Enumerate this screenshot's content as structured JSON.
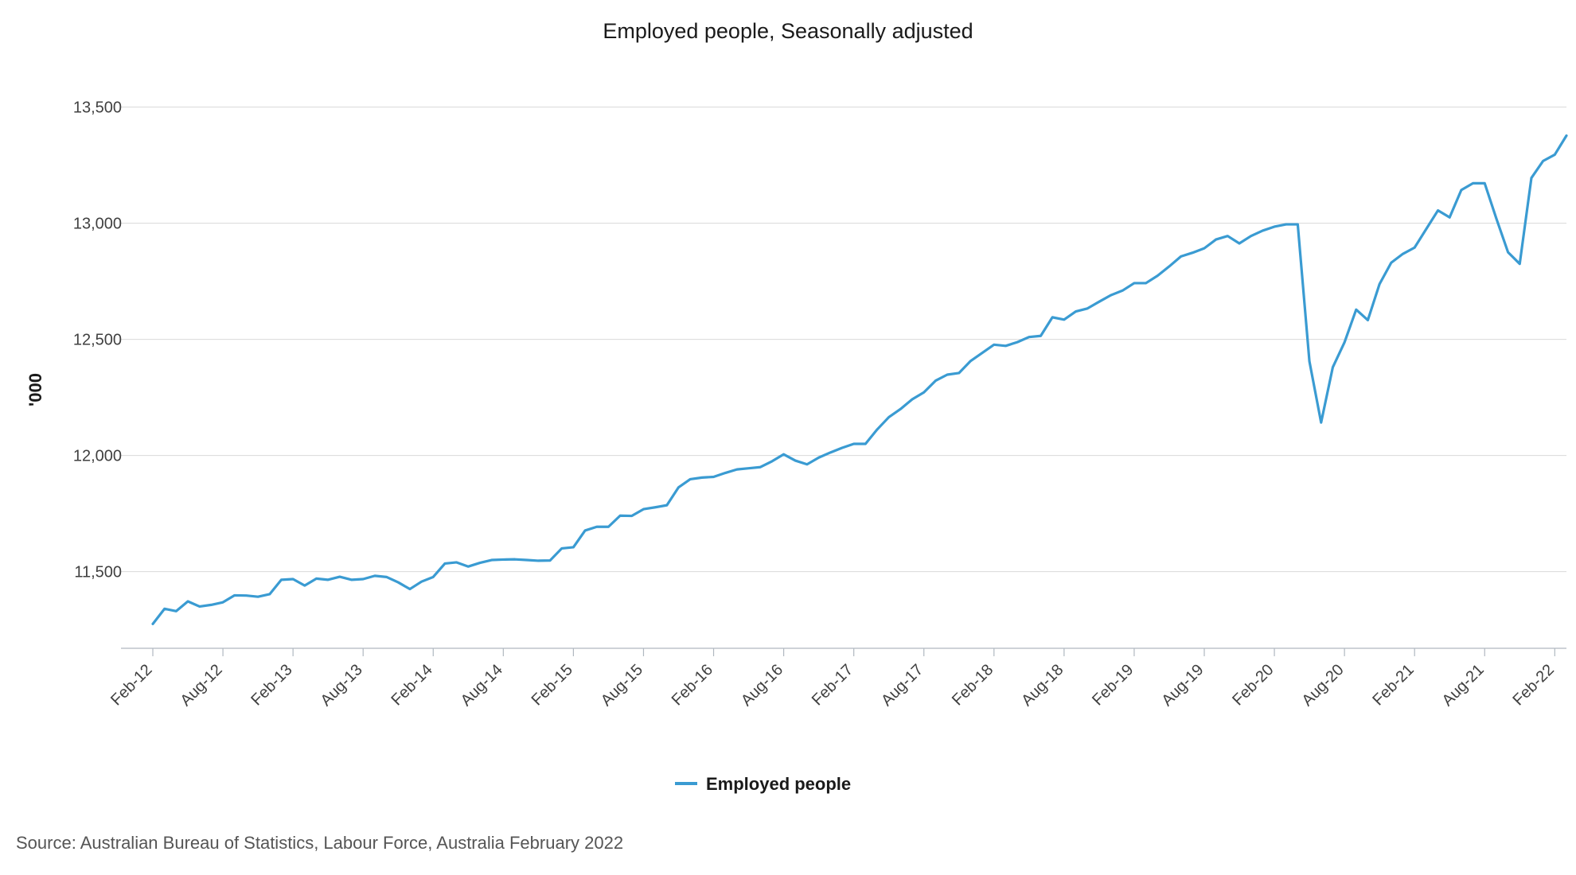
{
  "chart_data": {
    "type": "line",
    "title": "Employed people, Seasonally adjusted",
    "ylabel": "'000",
    "xlabel": "",
    "ylim": [
      11170,
      13550
    ],
    "yticks": [
      11500,
      12000,
      12500,
      13000,
      13500
    ],
    "ytick_labels": [
      "11,500",
      "12,000",
      "12,500",
      "13,000",
      "13,500"
    ],
    "x_tick_labels": [
      "Feb-12",
      "Aug-12",
      "Feb-13",
      "Aug-13",
      "Feb-14",
      "Aug-14",
      "Feb-15",
      "Aug-15",
      "Feb-16",
      "Aug-16",
      "Feb-17",
      "Aug-17",
      "Feb-18",
      "Aug-18",
      "Feb-19",
      "Aug-19",
      "Feb-20",
      "Aug-20",
      "Feb-21",
      "Aug-21",
      "Feb-22"
    ],
    "grid": true,
    "legend_position": "bottom-center",
    "series": [
      {
        "name": "Employed people",
        "color": "#3a9bd2",
        "start": "Feb-12",
        "values": [
          11275,
          11340,
          11330,
          11372,
          11350,
          11357,
          11368,
          11398,
          11397,
          11392,
          11403,
          11465,
          11468,
          11440,
          11470,
          11465,
          11478,
          11465,
          11468,
          11482,
          11477,
          11454,
          11425,
          11457,
          11477,
          11535,
          11540,
          11522,
          11538,
          11550,
          11552,
          11553,
          11550,
          11547,
          11548,
          11600,
          11605,
          11677,
          11693,
          11693,
          11741,
          11740,
          11769,
          11777,
          11786,
          11863,
          11898,
          11905,
          11908,
          11925,
          11940,
          11945,
          11950,
          11975,
          12005,
          11978,
          11962,
          11991,
          12013,
          12033,
          12050,
          12050,
          12112,
          12165,
          12200,
          12242,
          12272,
          12322,
          12348,
          12355,
          12407,
          12442,
          12477,
          12472,
          12488,
          12510,
          12515,
          12595,
          12585,
          12620,
          12633,
          12662,
          12690,
          12710,
          12742,
          12742,
          12774,
          12814,
          12857,
          12873,
          12892,
          12930,
          12945,
          12913,
          12945,
          12968,
          12985,
          12995,
          12995,
          12405,
          12142,
          12380,
          12487,
          12628,
          12583,
          12738,
          12830,
          12868,
          12895,
          12975,
          13055,
          13025,
          13143,
          13172,
          13172,
          13020,
          12875,
          12825,
          13195,
          13268,
          13295,
          13377
        ]
      }
    ],
    "source": "Source: Australian Bureau of Statistics, Labour Force, Australia February 2022"
  }
}
